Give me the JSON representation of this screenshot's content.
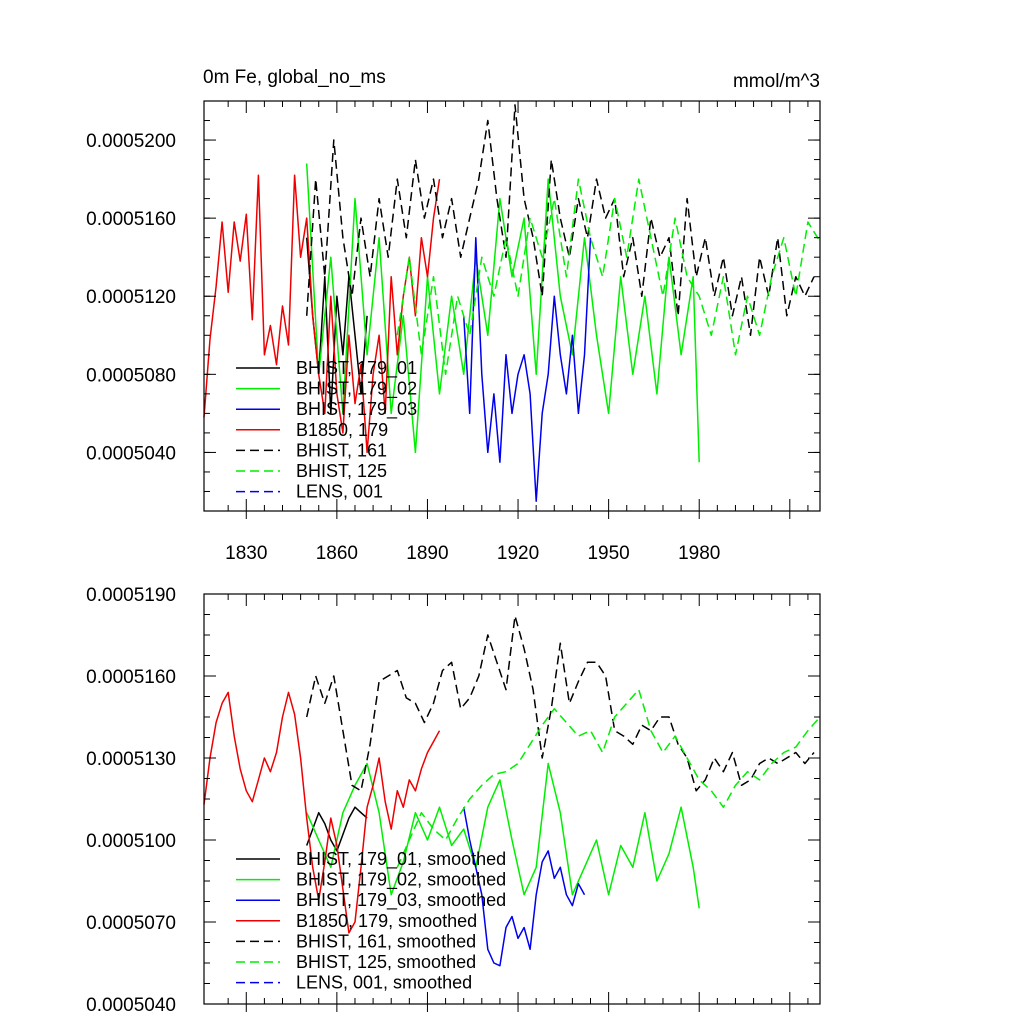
{
  "chart_data": [
    {
      "type": "line",
      "title": "0m Fe, global_no_ms",
      "units": "mmol/m^3",
      "xlim": [
        1816,
        2020
      ],
      "ylim": [
        0.000501,
        0.000522
      ],
      "xticks": [
        1830,
        1860,
        1890,
        1920,
        1950,
        1980
      ],
      "xtick_labels": [
        "1830",
        "1860",
        "1890",
        "1920",
        "1950",
        "1980"
      ],
      "yticks": [
        0.000504,
        0.000508,
        0.000512,
        0.000516,
        0.00052
      ],
      "ytick_labels": [
        "0.0005040",
        "0.0005080",
        "0.0005120",
        "0.0005160",
        "0.0005200"
      ],
      "legend_position": "lower-left",
      "series": [
        {
          "name": "BHIST, 179_01",
          "color": "#000000",
          "dash": "solid",
          "x": [
            1850,
            1852,
            1854,
            1856,
            1858,
            1860,
            1862,
            1864,
            1866,
            1868,
            1870
          ],
          "y": [
            0.000515,
            0.000511,
            0.000508,
            0.000513,
            0.000506,
            0.000512,
            0.000509,
            0.000513,
            0.00051,
            0.000507,
            0.000511
          ]
        },
        {
          "name": "BHIST, 179_02",
          "color": "#00ee00",
          "dash": "solid",
          "x": [
            1850,
            1854,
            1858,
            1862,
            1866,
            1870,
            1874,
            1878,
            1882,
            1886,
            1890,
            1894,
            1898,
            1902,
            1906,
            1910,
            1914,
            1918,
            1922,
            1926,
            1930,
            1934,
            1938,
            1942,
            1946,
            1950,
            1954,
            1958,
            1962,
            1966,
            1970,
            1974,
            1978,
            1980
          ],
          "y": [
            0.0005188,
            0.000508,
            0.000514,
            0.000506,
            0.000517,
            0.000509,
            0.000515,
            0.000506,
            0.000511,
            0.000504,
            0.000513,
            0.000507,
            0.000512,
            0.000508,
            0.000514,
            0.00051,
            0.000517,
            0.000513,
            0.000516,
            0.000508,
            0.000518,
            0.000512,
            0.000509,
            0.000515,
            0.00051,
            0.000506,
            0.000513,
            0.000508,
            0.000512,
            0.000507,
            0.000514,
            0.000509,
            0.000513,
            0.0005035
          ]
        },
        {
          "name": "BHIST, 179_03",
          "color": "#0000ee",
          "dash": "solid",
          "x": [
            1902,
            1904,
            1906,
            1908,
            1910,
            1912,
            1914,
            1916,
            1918,
            1920,
            1922,
            1924,
            1926,
            1928,
            1930,
            1932,
            1934,
            1936,
            1938,
            1940,
            1942,
            1944
          ],
          "y": [
            0.000511,
            0.000506,
            0.000515,
            0.000508,
            0.000504,
            0.000507,
            0.0005035,
            0.000509,
            0.000506,
            0.000508,
            0.000509,
            0.000507,
            0.0005015,
            0.000506,
            0.000508,
            0.000512,
            0.000509,
            0.000507,
            0.00051,
            0.000506,
            0.000509,
            0.000515
          ]
        },
        {
          "name": "B1850, 179",
          "color": "#ee0000",
          "dash": "solid",
          "x": [
            1816,
            1818,
            1820,
            1822,
            1824,
            1826,
            1828,
            1830,
            1832,
            1834,
            1836,
            1838,
            1840,
            1842,
            1844,
            1846,
            1848,
            1850,
            1852,
            1854,
            1856,
            1858,
            1860,
            1862,
            1864,
            1866,
            1868,
            1870,
            1872,
            1874,
            1876,
            1878,
            1880,
            1882,
            1884,
            1886,
            1888,
            1890,
            1892,
            1894
          ],
          "y": [
            0.0005058,
            0.0005098,
            0.0005125,
            0.0005158,
            0.0005122,
            0.0005158,
            0.0005138,
            0.0005162,
            0.0005108,
            0.0005182,
            0.000509,
            0.0005105,
            0.0005085,
            0.0005115,
            0.0005095,
            0.0005182,
            0.000514,
            0.000516,
            0.000511,
            0.000508,
            0.000506,
            0.000512,
            0.000507,
            0.000505,
            0.00051,
            0.0005065,
            0.0005085,
            0.000504,
            0.000508,
            0.00051,
            0.000506,
            0.000513,
            0.000509,
            0.000512,
            0.000514,
            0.000511,
            0.000515,
            0.000513,
            0.000516,
            0.000518
          ]
        },
        {
          "name": "BHIST, 161",
          "color": "#000000",
          "dash": "dashed",
          "x": [
            1850,
            1853,
            1856,
            1859,
            1862,
            1865,
            1868,
            1871,
            1874,
            1877,
            1880,
            1883,
            1886,
            1889,
            1892,
            1895,
            1898,
            1901,
            1904,
            1907,
            1910,
            1913,
            1916,
            1919,
            1922,
            1925,
            1928,
            1931,
            1934,
            1937,
            1940,
            1943,
            1946,
            1949,
            1952,
            1955,
            1958,
            1961,
            1964,
            1967,
            1970,
            1973,
            1976,
            1979,
            1982,
            1985,
            1988,
            1991,
            1994,
            1997,
            2000,
            2003,
            2006,
            2009,
            2012,
            2015,
            2018
          ],
          "y": [
            0.000511,
            0.000518,
            0.000513,
            0.00052,
            0.000515,
            0.000512,
            0.000516,
            0.000513,
            0.000517,
            0.000514,
            0.000518,
            0.000515,
            0.000519,
            0.000516,
            0.000518,
            0.000515,
            0.000517,
            0.000514,
            0.000516,
            0.000518,
            0.000521,
            0.000517,
            0.000514,
            0.0005218,
            0.000517,
            0.000515,
            0.000512,
            0.000519,
            0.000516,
            0.000514,
            0.000517,
            0.000515,
            0.000518,
            0.000516,
            0.000517,
            0.000513,
            0.000515,
            0.000512,
            0.000516,
            0.000514,
            0.000515,
            0.000511,
            0.000517,
            0.000513,
            0.000515,
            0.000512,
            0.000514,
            0.000511,
            0.000513,
            0.00051,
            0.000514,
            0.000512,
            0.000515,
            0.000511,
            0.000513,
            0.000512,
            0.000513
          ]
        },
        {
          "name": "BHIST, 125",
          "color": "#00ee00",
          "dash": "dashed",
          "x": [
            1880,
            1884,
            1888,
            1892,
            1896,
            1900,
            1904,
            1908,
            1912,
            1916,
            1920,
            1924,
            1928,
            1932,
            1936,
            1940,
            1944,
            1948,
            1952,
            1956,
            1960,
            1964,
            1968,
            1972,
            1976,
            1980,
            1984,
            1988,
            1992,
            1996,
            2000,
            2004,
            2008,
            2012,
            2016,
            2020
          ],
          "y": [
            0.00051,
            0.000514,
            0.000509,
            0.000513,
            0.000508,
            0.000512,
            0.00051,
            0.000514,
            0.000512,
            0.000515,
            0.000512,
            0.000516,
            0.000514,
            0.000517,
            0.000513,
            0.000518,
            0.000515,
            0.000513,
            0.000517,
            0.000514,
            0.000518,
            0.000515,
            0.000512,
            0.000516,
            0.000513,
            0.000512,
            0.00051,
            0.000513,
            0.000509,
            0.000512,
            0.00051,
            0.000513,
            0.000515,
            0.000512,
            0.0005158,
            0.0005148
          ]
        },
        {
          "name": "LENS, 001",
          "color": "#0000ee",
          "dash": "dashed",
          "x": [],
          "y": []
        }
      ]
    },
    {
      "type": "line",
      "title": "",
      "xlim": [
        1816,
        2020
      ],
      "ylim": [
        0.000504,
        0.000519
      ],
      "yticks": [
        0.000504,
        0.000507,
        0.00051,
        0.000513,
        0.000516,
        0.000519
      ],
      "ytick_labels": [
        "0.0005040",
        "0.0005070",
        "0.0005100",
        "0.0005130",
        "0.0005160",
        "0.0005190"
      ],
      "legend_position": "lower-left",
      "series": [
        {
          "name": "BHIST, 179_01, smoothed",
          "color": "#000000",
          "dash": "solid",
          "x": [
            1850,
            1852,
            1854,
            1856,
            1858,
            1860,
            1862,
            1864,
            1866,
            1868,
            1870
          ],
          "y": [
            0.0005098,
            0.0005104,
            0.000511,
            0.0005106,
            0.00051,
            0.0005096,
            0.0005102,
            0.0005108,
            0.0005112,
            0.000511,
            0.0005108
          ]
        },
        {
          "name": "BHIST, 179_02, smoothed",
          "color": "#00ee00",
          "dash": "solid",
          "x": [
            1850,
            1854,
            1858,
            1862,
            1866,
            1870,
            1874,
            1878,
            1882,
            1886,
            1890,
            1894,
            1898,
            1902,
            1906,
            1910,
            1914,
            1918,
            1922,
            1926,
            1930,
            1934,
            1938,
            1942,
            1946,
            1950,
            1954,
            1958,
            1962,
            1966,
            1970,
            1974,
            1978,
            1980
          ],
          "y": [
            0.000511,
            0.00051,
            0.000509,
            0.000511,
            0.000512,
            0.0005128,
            0.000511,
            0.000508,
            0.0005092,
            0.000511,
            0.00051,
            0.0005112,
            0.0005098,
            0.0005104,
            0.000509,
            0.0005112,
            0.0005122,
            0.00051,
            0.000508,
            0.000509,
            0.0005128,
            0.000511,
            0.000508,
            0.000509,
            0.00051,
            0.000508,
            0.0005098,
            0.000509,
            0.000511,
            0.0005085,
            0.0005095,
            0.0005112,
            0.000509,
            0.0005075
          ]
        },
        {
          "name": "BHIST, 179_03, smoothed",
          "color": "#0000ee",
          "dash": "solid",
          "x": [
            1902,
            1904,
            1906,
            1908,
            1910,
            1912,
            1914,
            1916,
            1918,
            1920,
            1922,
            1924,
            1926,
            1928,
            1930,
            1932,
            1934,
            1936,
            1938,
            1940,
            1942
          ],
          "y": [
            0.0005112,
            0.00051,
            0.000509,
            0.000508,
            0.000506,
            0.0005055,
            0.0005054,
            0.0005068,
            0.0005072,
            0.0005064,
            0.0005068,
            0.000506,
            0.000508,
            0.0005092,
            0.0005096,
            0.0005086,
            0.000509,
            0.000508,
            0.0005076,
            0.0005084,
            0.000508
          ]
        },
        {
          "name": "B1850, 179, smoothed",
          "color": "#ee0000",
          "dash": "solid",
          "x": [
            1816,
            1818,
            1820,
            1822,
            1824,
            1826,
            1828,
            1830,
            1832,
            1834,
            1836,
            1838,
            1840,
            1842,
            1844,
            1846,
            1848,
            1850,
            1852,
            1854,
            1856,
            1858,
            1860,
            1862,
            1864,
            1866,
            1868,
            1870,
            1872,
            1874,
            1876,
            1878,
            1880,
            1882,
            1884,
            1886,
            1888,
            1890,
            1892,
            1894
          ],
          "y": [
            0.0005113,
            0.000513,
            0.0005143,
            0.000515,
            0.0005154,
            0.0005138,
            0.0005126,
            0.0005118,
            0.0005114,
            0.0005122,
            0.000513,
            0.0005125,
            0.0005132,
            0.0005145,
            0.0005154,
            0.0005146,
            0.000513,
            0.0005108,
            0.000509,
            0.0005078,
            0.0005092,
            0.0005108,
            0.0005098,
            0.0005082,
            0.0005066,
            0.000507,
            0.000509,
            0.0005112,
            0.000512,
            0.000513,
            0.0005114,
            0.0005104,
            0.0005118,
            0.0005112,
            0.0005122,
            0.0005118,
            0.0005126,
            0.0005132,
            0.0005136,
            0.000514
          ]
        },
        {
          "name": "BHIST, 161, smoothed",
          "color": "#000000",
          "dash": "dashed",
          "x": [
            1850,
            1853,
            1856,
            1859,
            1862,
            1865,
            1868,
            1871,
            1874,
            1877,
            1880,
            1883,
            1886,
            1889,
            1892,
            1895,
            1898,
            1901,
            1904,
            1907,
            1910,
            1913,
            1916,
            1919,
            1922,
            1925,
            1928,
            1931,
            1934,
            1937,
            1940,
            1943,
            1946,
            1949,
            1952,
            1955,
            1958,
            1961,
            1964,
            1967,
            1970,
            1973,
            1976,
            1979,
            1982,
            1985,
            1988,
            1991,
            1994,
            1997,
            2000,
            2003,
            2006,
            2009,
            2012,
            2015,
            2018
          ],
          "y": [
            0.0005145,
            0.000516,
            0.000515,
            0.000516,
            0.000514,
            0.000512,
            0.0005118,
            0.0005135,
            0.0005158,
            0.000516,
            0.0005162,
            0.0005152,
            0.000515,
            0.0005143,
            0.000515,
            0.0005162,
            0.0005165,
            0.0005148,
            0.0005152,
            0.000516,
            0.0005175,
            0.0005165,
            0.0005155,
            0.0005182,
            0.000517,
            0.0005155,
            0.000513,
            0.0005148,
            0.0005172,
            0.000515,
            0.0005158,
            0.0005165,
            0.0005165,
            0.000516,
            0.000514,
            0.0005138,
            0.0005135,
            0.0005142,
            0.000514,
            0.0005145,
            0.0005145,
            0.0005135,
            0.000513,
            0.0005118,
            0.0005122,
            0.000513,
            0.0005125,
            0.0005132,
            0.000512,
            0.0005122,
            0.0005128,
            0.000513,
            0.0005128,
            0.000513,
            0.0005132,
            0.0005128,
            0.0005132
          ]
        },
        {
          "name": "BHIST, 125, smoothed",
          "color": "#00ee00",
          "dash": "dashed",
          "x": [
            1880,
            1884,
            1888,
            1892,
            1896,
            1900,
            1904,
            1908,
            1912,
            1916,
            1920,
            1924,
            1928,
            1932,
            1936,
            1940,
            1944,
            1948,
            1952,
            1956,
            1960,
            1964,
            1968,
            1972,
            1976,
            1980,
            1984,
            1988,
            1992,
            1996,
            2000,
            2004,
            2008,
            2012,
            2016,
            2020
          ],
          "y": [
            0.000509,
            0.00051,
            0.000511,
            0.0005104,
            0.00051,
            0.0005108,
            0.0005115,
            0.000512,
            0.0005124,
            0.0005125,
            0.0005128,
            0.0005135,
            0.0005142,
            0.0005148,
            0.0005143,
            0.0005138,
            0.000514,
            0.0005132,
            0.0005145,
            0.000515,
            0.0005155,
            0.000514,
            0.0005132,
            0.0005138,
            0.000513,
            0.0005122,
            0.0005118,
            0.0005112,
            0.000512,
            0.0005125,
            0.0005122,
            0.0005128,
            0.0005132,
            0.0005134,
            0.000514,
            0.0005145
          ]
        },
        {
          "name": "LENS, 001, smoothed",
          "color": "#0000ee",
          "dash": "dashed",
          "x": [],
          "y": []
        }
      ]
    }
  ]
}
